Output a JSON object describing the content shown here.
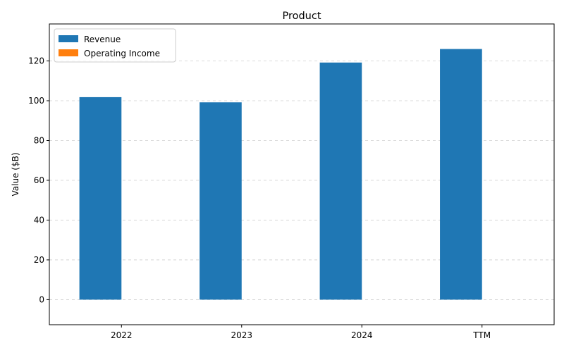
{
  "chart_data": {
    "type": "bar",
    "title": "Product",
    "xlabel": "",
    "ylabel": "Value ($B)",
    "categories": [
      "2022",
      "2023",
      "2024",
      "TTM"
    ],
    "series": [
      {
        "name": "Revenue",
        "color": "#1f77b4",
        "values": [
          101.8,
          99.2,
          119.2,
          126.0
        ]
      },
      {
        "name": "Operating Income",
        "color": "#ff7f0e",
        "values": [
          0,
          0,
          0,
          0
        ]
      }
    ],
    "ylim": [
      -12.6,
      138.6
    ],
    "yticks": [
      0,
      20,
      40,
      60,
      80,
      100,
      120
    ],
    "grid": "horizontal-dashed",
    "legend_position": "top-left"
  }
}
